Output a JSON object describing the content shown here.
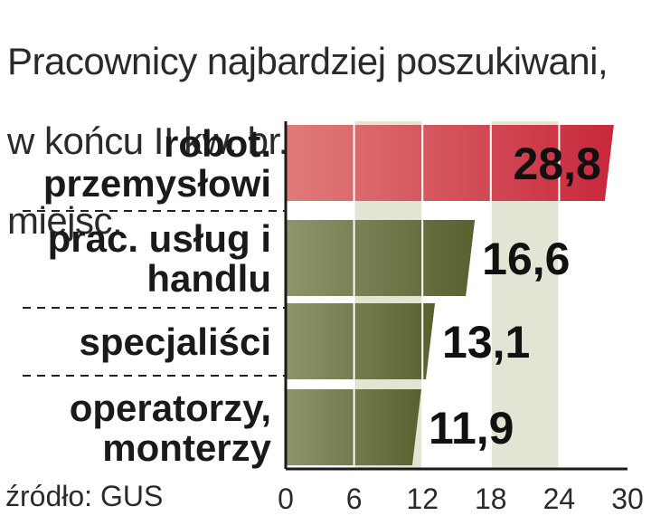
{
  "title_lines": [
    "Pracownicy najbardziej poszukiwani,",
    "w końcu II kw. br., w proc. wolnych",
    "miejsc."
  ],
  "source": "źródło: GUS",
  "colors": {
    "highlight": "#c8283c",
    "highlight_light": "#e07b7b",
    "bar": "#59602e",
    "bar_light": "#8f946b",
    "band": "#e4e4d4",
    "frame": "#1a1a1a"
  },
  "chart_data": {
    "type": "bar",
    "orientation": "horizontal",
    "categories": [
      [
        "robot.",
        "przemysłowi"
      ],
      [
        "prac. usług i",
        "handlu"
      ],
      [
        "specjaliści"
      ],
      [
        "operatorzy,",
        "monterzy"
      ]
    ],
    "values": [
      28.8,
      16.6,
      13.1,
      11.9
    ],
    "value_labels": [
      "28,8",
      "16,6",
      "13,1",
      "11,9"
    ],
    "highlight_index": 0,
    "xlim": [
      0,
      30
    ],
    "xticks": [
      0,
      6,
      12,
      18,
      24,
      30
    ],
    "grid": true,
    "title": "Pracownicy najbardziej poszukiwani, w końcu II kw. br., w proc. wolnych miejsc.",
    "xlabel": "",
    "ylabel": ""
  }
}
